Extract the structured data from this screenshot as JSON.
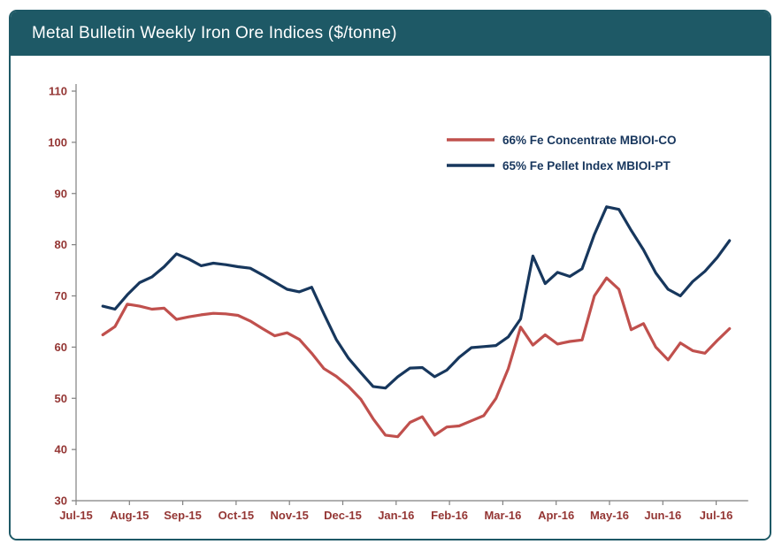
{
  "header": {
    "title": "Metal Bulletin Weekly Iron Ore Indices ($/tonne)",
    "bg_color": "#1E5966",
    "text_color": "#FFFFFF"
  },
  "colors": {
    "frame_border": "#1E5966",
    "axis_line": "#808080",
    "tick_label": "#943634",
    "legend_text": "#17365D",
    "background": "#FFFFFF"
  },
  "chart_data": {
    "type": "line",
    "title": "Metal Bulletin Weekly Iron Ore Indices ($/tonne)",
    "xlabel": "",
    "ylabel": "",
    "ylim": [
      30,
      110
    ],
    "y_ticks": [
      30,
      40,
      50,
      60,
      70,
      80,
      90,
      100,
      110
    ],
    "x_tick_labels": [
      "Jul-15",
      "Aug-15",
      "Sep-15",
      "Oct-15",
      "Nov-15",
      "Dec-15",
      "Jan-16",
      "Feb-16",
      "Mar-16",
      "Apr-16",
      "May-16",
      "Jun-16",
      "Jul-16"
    ],
    "grid": false,
    "legend_position": "upper-right",
    "frequency": "weekly",
    "series": [
      {
        "name": "66% Fe Concentrate MBIOI-CO",
        "color": "#C0504D",
        "x_start_month": 0.5,
        "x_end_month": 12.25,
        "values": [
          62.4,
          64.0,
          68.4,
          68.0,
          67.4,
          67.6,
          65.4,
          65.9,
          66.3,
          66.6,
          66.5,
          66.2,
          65.1,
          63.6,
          62.2,
          62.8,
          61.5,
          58.8,
          55.8,
          54.3,
          52.3,
          49.8,
          46.0,
          42.8,
          42.5,
          45.3,
          46.4,
          42.8,
          44.4,
          44.6,
          45.6,
          46.6,
          50.0,
          55.8,
          63.9,
          60.4,
          62.4,
          60.6,
          61.1,
          61.4,
          70.0,
          73.5,
          71.3,
          63.4,
          64.6,
          60.0,
          57.5,
          60.8,
          59.3,
          58.8,
          61.3,
          63.6
        ]
      },
      {
        "name": "65% Fe Pellet Index MBIOI-PT",
        "color": "#17375D",
        "x_start_month": 0.5,
        "x_end_month": 12.25,
        "values": [
          68.0,
          67.4,
          70.2,
          72.6,
          73.7,
          75.7,
          78.2,
          77.2,
          75.9,
          76.4,
          76.1,
          75.7,
          75.4,
          74.1,
          72.7,
          71.3,
          70.8,
          71.7,
          66.5,
          61.5,
          57.8,
          55.0,
          52.3,
          52.0,
          54.2,
          55.9,
          56.0,
          54.2,
          55.5,
          58.0,
          59.9,
          60.1,
          60.3,
          62.0,
          65.5,
          77.8,
          72.4,
          74.6,
          73.8,
          75.3,
          82.0,
          87.4,
          86.9,
          82.8,
          79.0,
          74.5,
          71.3,
          70.0,
          72.8,
          74.8,
          77.5,
          80.8
        ]
      }
    ]
  }
}
